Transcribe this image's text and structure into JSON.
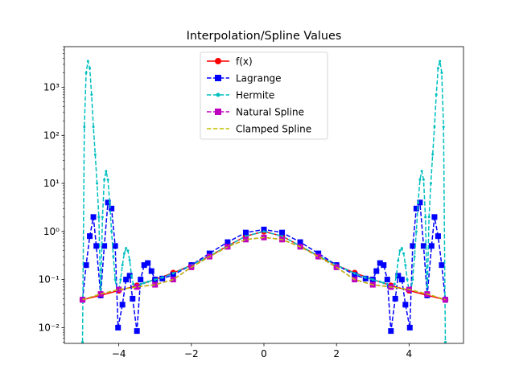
{
  "chart_data": {
    "type": "line",
    "title": "Interpolation/Spline Values",
    "xlabel": "",
    "ylabel": "",
    "y_scale": "log",
    "xlim": [
      -5.5,
      5.5
    ],
    "ylim": [
      0.0047,
      7000
    ],
    "grid": false,
    "legend_position": "top-center",
    "x_ticks": [
      -4,
      -2,
      0,
      2,
      4
    ],
    "x_tick_labels": [
      "−4",
      "−2",
      "0",
      "2",
      "4"
    ],
    "y_ticks": [
      0.01,
      0.1,
      1,
      10,
      100,
      1000
    ],
    "y_tick_labels": [
      "10⁻²",
      "10⁻¹",
      "10⁰",
      "10¹",
      "10²",
      "10³"
    ],
    "series": [
      {
        "name": "f(x)",
        "color": "#ff0000",
        "linestyle": "solid",
        "marker": "circle",
        "x": [
          -5,
          -4.5,
          -4,
          -3.5,
          -3,
          -2.5,
          -2,
          -1.5,
          -1,
          -0.5,
          0,
          0.5,
          1,
          1.5,
          2,
          2.5,
          3,
          3.5,
          4,
          4.5,
          5
        ],
        "y": [
          0.038,
          0.047,
          0.059,
          0.075,
          0.1,
          0.138,
          0.2,
          0.308,
          0.5,
          0.8,
          1.0,
          0.8,
          0.5,
          0.308,
          0.2,
          0.138,
          0.1,
          0.075,
          0.059,
          0.047,
          0.038
        ]
      },
      {
        "name": "Lagrange",
        "color": "#0000ff",
        "linestyle": "dashed",
        "marker": "square",
        "x": [
          -5,
          -4.9,
          -4.8,
          -4.7,
          -4.62,
          -4.5,
          -4.4,
          -4.3,
          -4.2,
          -4.1,
          -4.02,
          -3.9,
          -3.8,
          -3.7,
          -3.62,
          -3.5,
          -3.4,
          -3.3,
          -3.2,
          -3.1,
          -3.0,
          -2.8,
          -2.5,
          -2.0,
          -1.5,
          -1.0,
          -0.5,
          0,
          0.5,
          1.0,
          1.5,
          2.0,
          2.5,
          2.8,
          3.0,
          3.1,
          3.2,
          3.3,
          3.4,
          3.5,
          3.62,
          3.7,
          3.8,
          3.9,
          4.02,
          4.1,
          4.2,
          4.3,
          4.4,
          4.5,
          4.62,
          4.7,
          4.8,
          4.9,
          5
        ],
        "y": [
          0.038,
          0.2,
          0.8,
          2.0,
          0.5,
          0.047,
          0.5,
          4.0,
          3.0,
          0.5,
          0.01,
          0.03,
          0.1,
          0.12,
          0.04,
          0.0085,
          0.1,
          0.2,
          0.22,
          0.15,
          0.1,
          0.105,
          0.125,
          0.2,
          0.35,
          0.6,
          0.95,
          1.1,
          0.95,
          0.6,
          0.35,
          0.2,
          0.125,
          0.105,
          0.1,
          0.15,
          0.22,
          0.2,
          0.1,
          0.0085,
          0.04,
          0.12,
          0.1,
          0.03,
          0.01,
          0.5,
          3.0,
          4.0,
          0.5,
          0.047,
          0.5,
          2.0,
          0.8,
          0.2,
          0.038
        ]
      },
      {
        "name": "Hermite",
        "color": "#00bfbf",
        "linestyle": "dashed",
        "marker": "point",
        "x": [
          -5,
          -4.95,
          -4.9,
          -4.85,
          -4.8,
          -4.75,
          -4.7,
          -4.65,
          -4.6,
          -4.55,
          -4.5,
          -4.45,
          -4.4,
          -4.35,
          -4.3,
          -4.25,
          -4.2,
          -4.15,
          -4.1,
          -4.05,
          -4.0,
          -3.95,
          -3.9,
          -3.85,
          -3.8,
          -3.75,
          -3.7,
          -3.65,
          -3.6,
          -3.55,
          -3.5,
          -3.4,
          -3.3,
          -3.2,
          -3.0,
          -2.8,
          -2.5,
          -2.0,
          -1.5,
          -1.0,
          -0.5,
          0,
          0.5,
          1.0,
          1.5,
          2.0,
          2.5,
          2.8,
          3.0,
          3.2,
          3.3,
          3.4,
          3.5,
          3.55,
          3.6,
          3.65,
          3.7,
          3.75,
          3.8,
          3.85,
          3.9,
          3.95,
          4.0,
          4.05,
          4.1,
          4.15,
          4.2,
          4.25,
          4.3,
          4.35,
          4.4,
          4.45,
          4.5,
          4.55,
          4.6,
          4.65,
          4.7,
          4.75,
          4.8,
          4.85,
          4.9,
          4.95,
          5
        ],
        "y": [
          0.005,
          150,
          2000,
          3500,
          2500,
          700,
          150,
          40,
          10,
          2,
          0.047,
          2,
          12,
          18,
          12,
          4,
          1,
          0.3,
          0.1,
          0.06,
          0.059,
          0.1,
          0.2,
          0.35,
          0.45,
          0.4,
          0.25,
          0.12,
          0.08,
          0.075,
          0.075,
          0.08,
          0.085,
          0.09,
          0.1,
          0.11,
          0.135,
          0.2,
          0.31,
          0.5,
          0.8,
          1.0,
          0.8,
          0.5,
          0.31,
          0.2,
          0.135,
          0.11,
          0.1,
          0.09,
          0.085,
          0.08,
          0.075,
          0.075,
          0.08,
          0.12,
          0.25,
          0.4,
          0.45,
          0.35,
          0.2,
          0.1,
          0.059,
          0.06,
          0.1,
          0.3,
          1,
          4,
          12,
          18,
          12,
          2,
          0.047,
          2,
          10,
          40,
          150,
          700,
          2500,
          3500,
          2000,
          150,
          0.005
        ]
      },
      {
        "name": "Natural Spline",
        "color": "#bf00bf",
        "linestyle": "dashed",
        "marker": "square",
        "x": [
          -5,
          -4.5,
          -4,
          -3.5,
          -3,
          -2.5,
          -2,
          -1.5,
          -1,
          -0.5,
          0,
          0.5,
          1,
          1.5,
          2,
          2.5,
          3,
          3.5,
          4,
          4.5,
          5
        ],
        "y": [
          0.038,
          0.05,
          0.062,
          0.07,
          0.078,
          0.1,
          0.18,
          0.3,
          0.48,
          0.68,
          0.75,
          0.68,
          0.48,
          0.3,
          0.18,
          0.1,
          0.078,
          0.07,
          0.062,
          0.05,
          0.038
        ]
      },
      {
        "name": "Clamped Spline",
        "color": "#bfbf00",
        "linestyle": "dashed",
        "marker": "none",
        "x": [
          -5,
          -4.5,
          -4,
          -3.5,
          -3,
          -2.5,
          -2,
          -1.5,
          -1,
          -0.5,
          0,
          0.5,
          1,
          1.5,
          2,
          2.5,
          3,
          3.5,
          4,
          4.5,
          5
        ],
        "y": [
          0.038,
          0.05,
          0.062,
          0.07,
          0.078,
          0.1,
          0.18,
          0.3,
          0.48,
          0.68,
          0.75,
          0.68,
          0.48,
          0.3,
          0.18,
          0.1,
          0.078,
          0.07,
          0.062,
          0.05,
          0.038
        ]
      }
    ]
  }
}
